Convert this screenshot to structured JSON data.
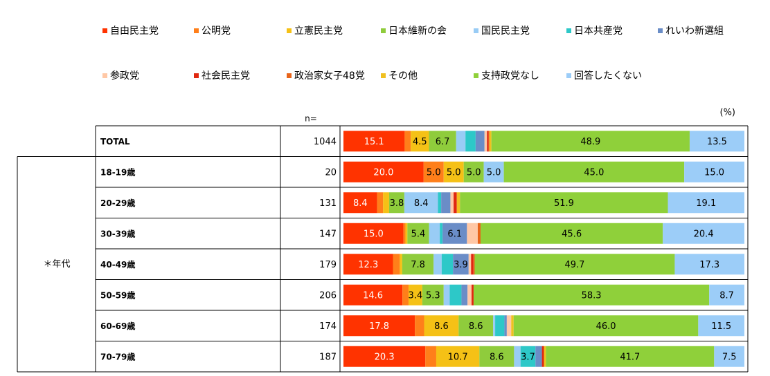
{
  "chart_data": {
    "type": "bar",
    "stacked": "100%",
    "unit_label": "(%)",
    "n_header": "n=",
    "group_label": "＊年代",
    "legend_position": "top",
    "series": [
      {
        "name": "自由民主党",
        "color": "#ff3300",
        "values": [
          15.1,
          20.0,
          8.4,
          15.0,
          12.3,
          14.6,
          17.8,
          20.3
        ]
      },
      {
        "name": "公明党",
        "color": "#ff7f1a",
        "values": [
          1.5,
          5.0,
          1.5,
          0.5,
          1.7,
          1.5,
          2.3,
          2.7
        ]
      },
      {
        "name": "立憲民主党",
        "color": "#f5c116",
        "values": [
          4.5,
          5.0,
          1.5,
          0.5,
          0.6,
          3.4,
          8.6,
          10.7
        ]
      },
      {
        "name": "日本維新の会",
        "color": "#8fcc3c",
        "values": [
          6.7,
          5.0,
          3.8,
          5.4,
          7.8,
          5.3,
          8.6,
          8.6
        ]
      },
      {
        "name": "国民民主党",
        "color": "#99ccf5",
        "values": [
          2.3,
          5.0,
          8.4,
          2.7,
          2.0,
          1.5,
          0.5,
          1.6
        ]
      },
      {
        "name": "日本共産党",
        "color": "#2dc8c8",
        "values": [
          2.5,
          0.0,
          0.8,
          0.7,
          2.8,
          2.9,
          2.3,
          3.7
        ]
      },
      {
        "name": "れいわ新選組",
        "color": "#6a8dc7",
        "values": [
          2.2,
          0.0,
          2.3,
          6.1,
          3.9,
          1.5,
          0.6,
          1.6
        ]
      },
      {
        "name": "参政党",
        "color": "#ffc8a6",
        "values": [
          0.6,
          0.0,
          0.8,
          2.7,
          0.6,
          1.0,
          1.1,
          0.0
        ]
      },
      {
        "name": "社会民主党",
        "color": "#e02810",
        "values": [
          0.4,
          0.0,
          0.8,
          0.0,
          0.6,
          0.5,
          0.0,
          0.5
        ]
      },
      {
        "name": "政治家女子48党",
        "color": "#e8641a",
        "values": [
          0.2,
          0.0,
          0.0,
          0.7,
          0.3,
          0.0,
          0.0,
          0.0
        ]
      },
      {
        "name": "その他",
        "color": "#f0c020",
        "values": [
          0.5,
          0.0,
          0.8,
          0.0,
          0.0,
          0.0,
          0.6,
          0.5
        ]
      },
      {
        "name": "支持政党なし",
        "color": "#8fd03a",
        "values": [
          48.9,
          45.0,
          51.9,
          45.6,
          49.7,
          58.3,
          46.0,
          41.7
        ]
      },
      {
        "name": "回答したくない",
        "color": "#9ccdf8",
        "values": [
          13.5,
          15.0,
          19.1,
          20.4,
          17.3,
          8.7,
          11.5,
          7.5
        ]
      }
    ],
    "rows": [
      {
        "label": "TOTAL",
        "n": "1044"
      },
      {
        "label": "18-19歳",
        "n": "20"
      },
      {
        "label": "20-29歳",
        "n": "131"
      },
      {
        "label": "30-39歳",
        "n": "147"
      },
      {
        "label": "40-49歳",
        "n": "179"
      },
      {
        "label": "50-59歳",
        "n": "206"
      },
      {
        "label": "60-69歳",
        "n": "174"
      },
      {
        "label": "70-79歳",
        "n": "187"
      }
    ],
    "data_labels": [
      [
        "15.1",
        "",
        "4.5",
        "6.7",
        "",
        "",
        "",
        "",
        "",
        "",
        "",
        "48.9",
        "13.5"
      ],
      [
        "20.0",
        "5.0",
        "5.0",
        "5.0",
        "5.0",
        "",
        "",
        "",
        "",
        "",
        "",
        "45.0",
        "15.0"
      ],
      [
        "8.4",
        "",
        "",
        "3.8",
        "8.4",
        "",
        "",
        "",
        "",
        "",
        "",
        "51.9",
        "19.1"
      ],
      [
        "15.0",
        "",
        "",
        "5.4",
        "",
        "",
        "6.1",
        "",
        "",
        "",
        "",
        "45.6",
        "20.4"
      ],
      [
        "12.3",
        "",
        "",
        "7.8",
        "",
        "",
        "3.9",
        "",
        "",
        "",
        "",
        "49.7",
        "17.3"
      ],
      [
        "14.6",
        "",
        "3.4",
        "5.3",
        "",
        "",
        "",
        "",
        "",
        "",
        "",
        "58.3",
        "8.7"
      ],
      [
        "17.8",
        "",
        "8.6",
        "8.6",
        "",
        "",
        "",
        "",
        "",
        "",
        "",
        "46.0",
        "11.5"
      ],
      [
        "20.3",
        "",
        "10.7",
        "8.6",
        "",
        "3.7",
        "",
        "",
        "",
        "",
        "",
        "41.7",
        "7.5"
      ]
    ]
  }
}
